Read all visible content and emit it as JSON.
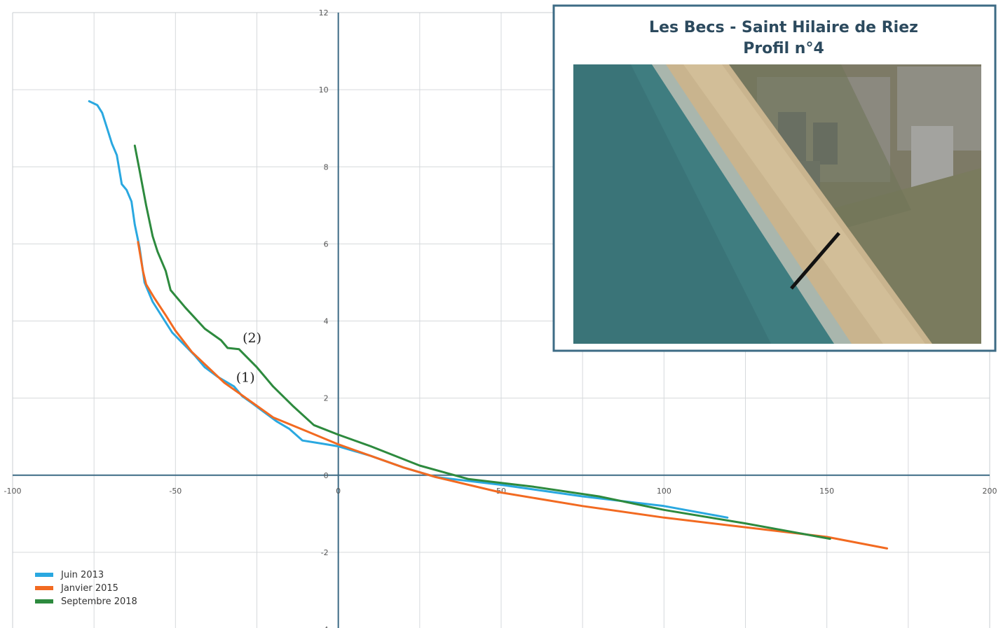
{
  "chart_data": {
    "type": "line",
    "title": "",
    "xlabel": "",
    "ylabel": "",
    "xlim": [
      -100,
      200
    ],
    "ylim": [
      -4,
      12
    ],
    "x_ticks": [
      "-100",
      "-50",
      "0",
      "50",
      "100",
      "150",
      "200"
    ],
    "y_ticks": [
      "12",
      "10",
      "8",
      "6",
      "4",
      "2",
      "0",
      "-2",
      "-4"
    ],
    "grid": true,
    "legend_position": "bottom-left",
    "series": [
      {
        "name": "Juin 2013",
        "color": "#2aa8e0",
        "points": [
          [
            -76.5,
            9.7
          ],
          [
            -74,
            9.6
          ],
          [
            -72.5,
            9.4
          ],
          [
            -71,
            9.0
          ],
          [
            -69.5,
            8.6
          ],
          [
            -68,
            8.3
          ],
          [
            -66.5,
            7.55
          ],
          [
            -65,
            7.4
          ],
          [
            -63.5,
            7.1
          ],
          [
            -62.5,
            6.5
          ],
          [
            -61,
            5.9
          ],
          [
            -59.5,
            5.0
          ],
          [
            -57,
            4.5
          ],
          [
            -54,
            4.1
          ],
          [
            -51,
            3.7
          ],
          [
            -47.5,
            3.4
          ],
          [
            -44,
            3.1
          ],
          [
            -41,
            2.8
          ],
          [
            -37,
            2.55
          ],
          [
            -34,
            2.4
          ],
          [
            -32,
            2.3
          ],
          [
            -29.5,
            2.05
          ],
          [
            -27,
            1.9
          ],
          [
            -23,
            1.65
          ],
          [
            -19,
            1.4
          ],
          [
            -15,
            1.2
          ],
          [
            -11,
            0.9
          ],
          [
            -5,
            0.82
          ],
          [
            0,
            0.75
          ],
          [
            10,
            0.5
          ],
          [
            20,
            0.2
          ],
          [
            30,
            -0.05
          ],
          [
            50,
            -0.25
          ],
          [
            75,
            -0.55
          ],
          [
            100,
            -0.8
          ],
          [
            119.5,
            -1.1
          ]
        ]
      },
      {
        "name": "Janvier 2015",
        "color": "#f26a21",
        "points": [
          [
            -61.5,
            6.05
          ],
          [
            -60,
            5.3
          ],
          [
            -59,
            4.95
          ],
          [
            -56.5,
            4.6
          ],
          [
            -53,
            4.15
          ],
          [
            -50,
            3.75
          ],
          [
            -45,
            3.2
          ],
          [
            -40,
            2.8
          ],
          [
            -35,
            2.4
          ],
          [
            -30,
            2.1
          ],
          [
            -25,
            1.8
          ],
          [
            -20,
            1.5
          ],
          [
            -10,
            1.15
          ],
          [
            0,
            0.8
          ],
          [
            10,
            0.5
          ],
          [
            20,
            0.2
          ],
          [
            30,
            -0.05
          ],
          [
            50,
            -0.45
          ],
          [
            75,
            -0.8
          ],
          [
            100,
            -1.1
          ],
          [
            125,
            -1.35
          ],
          [
            150,
            -1.6
          ],
          [
            168.5,
            -1.9
          ]
        ]
      },
      {
        "name": "Septembre 2018",
        "color": "#2d8a3e",
        "points": [
          [
            -62.5,
            8.55
          ],
          [
            -61,
            7.9
          ],
          [
            -59,
            7.0
          ],
          [
            -57,
            6.2
          ],
          [
            -55.5,
            5.8
          ],
          [
            -53,
            5.3
          ],
          [
            -51.5,
            4.8
          ],
          [
            -47,
            4.35
          ],
          [
            -41,
            3.8
          ],
          [
            -36,
            3.5
          ],
          [
            -34,
            3.3
          ],
          [
            -30.5,
            3.27
          ],
          [
            -25,
            2.8
          ],
          [
            -20,
            2.3
          ],
          [
            -14,
            1.8
          ],
          [
            -7.5,
            1.3
          ],
          [
            0,
            1.05
          ],
          [
            10,
            0.75
          ],
          [
            25,
            0.25
          ],
          [
            40,
            -0.1
          ],
          [
            60,
            -0.3
          ],
          [
            80,
            -0.55
          ],
          [
            100,
            -0.9
          ],
          [
            125,
            -1.25
          ],
          [
            151,
            -1.65
          ]
        ]
      }
    ],
    "annotations": [
      {
        "text": "(2)",
        "x": -26.5,
        "y": 3.45
      },
      {
        "text": "(1)",
        "x": -28.5,
        "y": 2.42
      }
    ],
    "inset": {
      "title_line1": "Les Becs - Saint Hilaire de Riez",
      "title_line2": "Profil n°4",
      "content": "aerial photograph"
    }
  }
}
